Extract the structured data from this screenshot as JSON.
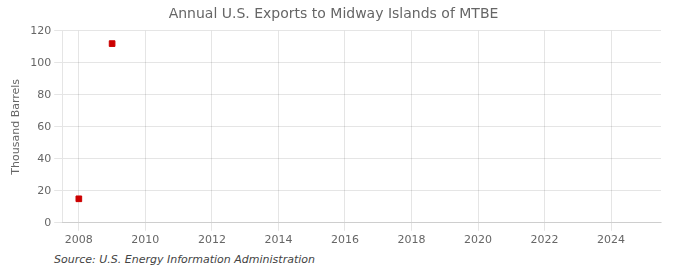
{
  "chart_data": {
    "type": "scatter",
    "title": "Annual U.S. Exports to Midway Islands of MTBE",
    "ylabel": "Thousand Barrels",
    "annotation": "Source: U.S. Energy Information Administration",
    "x": [
      2008,
      2009
    ],
    "values": [
      15,
      112
    ],
    "color": "#cc0000",
    "marker": "square",
    "xlim": [
      2007.5,
      2025.5
    ],
    "xticks": [
      2008,
      2010,
      2012,
      2014,
      2016,
      2018,
      2020,
      2022,
      2024
    ],
    "ylim": [
      0,
      120
    ],
    "yticks": [
      0,
      20,
      40,
      60,
      80,
      100,
      120
    ],
    "grid": true
  }
}
